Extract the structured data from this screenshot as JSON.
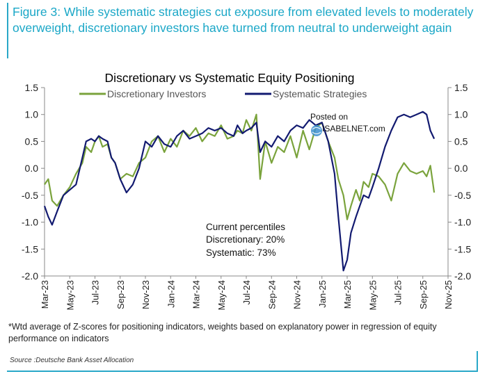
{
  "figure_title": "Figure 3: While systematic strategies cut exposure from elevated levels to moderately overweight, discretionary investors have turned from neutral to underweight again",
  "footnote": "*Wtd average of Z-scores for positioning indicators, weights based on explanatory power in regression of equity performance on indicators",
  "source": "Source :Deutsche Bank Asset Allocation",
  "watermark": {
    "line1": "Posted on",
    "line2": "ISABELNET.com"
  },
  "colors": {
    "discretionary": "#7aa33c",
    "systematic": "#121a70",
    "title_accent": "#1aa7c7",
    "frame": "#29a8c8"
  },
  "chart_data": {
    "type": "line",
    "title": "Discretionary  vs Systematic Equity Positioning",
    "xlabel": "",
    "ylabel": "",
    "ylim": [
      -2.0,
      1.5
    ],
    "yticks": [
      1.5,
      1.0,
      0.5,
      0.0,
      -0.5,
      -1.0,
      -1.5,
      -2.0
    ],
    "ytick_labels": [
      "1.5",
      "1.0",
      "0.5",
      "0.0",
      "-0.5",
      "-1.0",
      "-1.5",
      "-2.0"
    ],
    "xlim": [
      0,
      32
    ],
    "xticks": [
      0,
      2,
      4,
      6,
      8,
      10,
      12,
      14,
      16,
      18,
      20,
      22,
      24,
      26,
      28,
      30,
      32
    ],
    "xtick_labels": [
      "Mar-23",
      "May-23",
      "Jul-23",
      "Sep-23",
      "Nov-23",
      "Jan-24",
      "Mar-24",
      "May-24",
      "Jul-24",
      "Sep-24",
      "Nov-24",
      "Jan-25",
      "Mar-25",
      "May-25",
      "Jul-25",
      "Sep-25",
      "Nov-25"
    ],
    "legend_position": "top",
    "annotation": {
      "heading": "Current percentiles",
      "line1": "Discretionary: 20%",
      "line2": "Systematic: 73%"
    },
    "series": [
      {
        "name": "Discretionary Investors",
        "color": "#7aa33c",
        "x": [
          0,
          0.3,
          0.6,
          1.0,
          1.5,
          2.0,
          2.5,
          3.0,
          3.3,
          3.7,
          4.0,
          4.3,
          4.6,
          5.0,
          5.3,
          5.6,
          6.0,
          6.5,
          7.0,
          7.5,
          8.0,
          8.5,
          9.0,
          9.5,
          10.0,
          10.5,
          11.0,
          11.5,
          12.0,
          12.5,
          13.0,
          13.5,
          14.0,
          14.5,
          15.0,
          15.3,
          15.7,
          16.0,
          16.4,
          16.8,
          17.1,
          17.5,
          18.0,
          18.5,
          19.0,
          19.5,
          20.0,
          20.5,
          21.0,
          21.5,
          22.0,
          22.5,
          23.0,
          23.3,
          23.7,
          24.0,
          24.3,
          24.7,
          25.0,
          25.3,
          25.7,
          26.0,
          26.5,
          27.0,
          27.5,
          28.0,
          28.5,
          29.0,
          29.5,
          30.0,
          30.3,
          30.6,
          30.9
        ],
        "values": [
          -0.3,
          -0.2,
          -0.6,
          -0.7,
          -0.5,
          -0.35,
          -0.1,
          0.1,
          0.4,
          0.3,
          0.5,
          0.6,
          0.4,
          0.45,
          0.2,
          0.1,
          -0.2,
          -0.1,
          -0.15,
          0.1,
          0.2,
          0.5,
          0.6,
          0.3,
          0.55,
          0.4,
          0.7,
          0.6,
          0.75,
          0.5,
          0.65,
          0.6,
          0.8,
          0.55,
          0.6,
          0.7,
          0.65,
          0.9,
          0.7,
          1.0,
          -0.2,
          0.5,
          0.1,
          0.4,
          0.3,
          0.6,
          0.2,
          0.7,
          0.35,
          0.75,
          0.85,
          0.5,
          0.2,
          -0.2,
          -0.5,
          -0.95,
          -0.7,
          -0.4,
          -0.6,
          -0.25,
          -0.35,
          -0.1,
          -0.15,
          -0.3,
          -0.6,
          -0.1,
          0.1,
          -0.05,
          -0.1,
          -0.05,
          -0.15,
          0.05,
          -0.45
        ]
      },
      {
        "name": "Systematic Strategies",
        "color": "#121a70",
        "x": [
          0,
          0.3,
          0.6,
          1.0,
          1.5,
          2.0,
          2.5,
          3.0,
          3.3,
          3.7,
          4.0,
          4.3,
          4.6,
          5.0,
          5.3,
          5.6,
          6.0,
          6.5,
          7.0,
          7.5,
          8.0,
          8.5,
          9.0,
          9.5,
          10.0,
          10.5,
          11.0,
          11.5,
          12.0,
          12.5,
          13.0,
          13.5,
          14.0,
          14.5,
          15.0,
          15.3,
          15.7,
          16.0,
          16.4,
          16.8,
          17.1,
          17.5,
          18.0,
          18.5,
          19.0,
          19.5,
          20.0,
          20.5,
          21.0,
          21.5,
          22.0,
          22.5,
          23.0,
          23.3,
          23.7,
          24.0,
          24.3,
          24.7,
          25.0,
          25.3,
          25.7,
          26.0,
          26.5,
          27.0,
          27.5,
          28.0,
          28.5,
          29.0,
          29.5,
          30.0,
          30.3,
          30.6,
          30.9
        ],
        "values": [
          -0.7,
          -0.9,
          -1.05,
          -0.8,
          -0.5,
          -0.4,
          -0.3,
          0.2,
          0.5,
          0.55,
          0.5,
          0.6,
          0.55,
          0.5,
          0.2,
          0.1,
          -0.2,
          -0.45,
          -0.3,
          0.0,
          0.5,
          0.4,
          0.6,
          0.45,
          0.4,
          0.6,
          0.7,
          0.55,
          0.6,
          0.65,
          0.75,
          0.7,
          0.75,
          0.65,
          0.6,
          0.8,
          0.65,
          0.7,
          0.75,
          0.85,
          0.3,
          0.5,
          0.4,
          0.6,
          0.5,
          0.7,
          0.8,
          0.75,
          0.9,
          0.8,
          0.85,
          0.5,
          -0.1,
          -0.9,
          -1.9,
          -1.7,
          -1.2,
          -0.9,
          -0.7,
          -0.5,
          -0.55,
          -0.35,
          0.0,
          0.4,
          0.7,
          0.95,
          1.0,
          0.95,
          1.0,
          1.05,
          1.0,
          0.7,
          0.55
        ]
      }
    ]
  }
}
